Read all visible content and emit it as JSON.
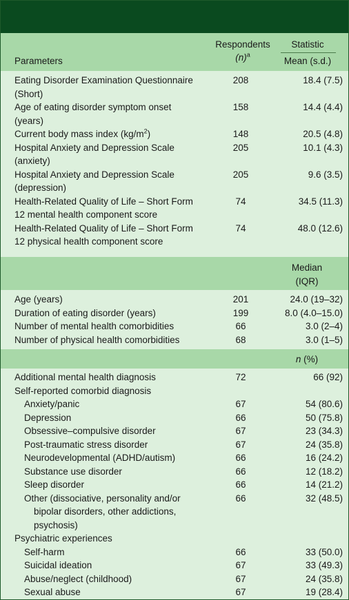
{
  "header": {
    "parameters": "Parameters",
    "respondents": "Respondents",
    "respondents_n": "(n)",
    "respondents_sup": "a",
    "statistic": "Statistic",
    "mean_sd": "Mean (s.d.)"
  },
  "section1": [
    {
      "l1": "Eating Disorder Examination Questionnaire",
      "l2": "(Short)",
      "n": "208",
      "v": "18.4 (7.5)"
    },
    {
      "l1": "Age of eating disorder symptom onset",
      "l2": "(years)",
      "n": "158",
      "v": "14.4 (4.4)"
    },
    {
      "l1": "Current body mass index (kg/m",
      "l1sup": "2",
      "l1end": ")",
      "n": "148",
      "v": "20.5 (4.8)"
    },
    {
      "l1": "Hospital Anxiety and Depression Scale",
      "l2": "(anxiety)",
      "n": "205",
      "v": "10.1 (4.3)"
    },
    {
      "l1": "Hospital Anxiety and Depression Scale",
      "l2": "(depression)",
      "n": "205",
      "v": "9.6 (3.5)"
    },
    {
      "l1": "Health-Related Quality of Life – Short Form",
      "l2": "12 mental health component score",
      "n": "74",
      "v": "34.5 (11.3)"
    },
    {
      "l1": "Health-Related Quality of Life – Short Form",
      "l2": "12 physical health component score",
      "n": "74",
      "v": "48.0 (12.6)"
    }
  ],
  "median_header": {
    "l1": "Median",
    "l2": "(IQR)"
  },
  "section2": [
    {
      "l1": "Age (years)",
      "n": "201",
      "v": "24.0 (19–32)"
    },
    {
      "l1": "Duration of eating disorder (years)",
      "n": "199",
      "v": "8.0 (4.0–15.0)"
    },
    {
      "l1": "Number of mental health comorbidities",
      "n": "66",
      "v": "3.0 (2–4)"
    },
    {
      "l1": "Number of physical health comorbidities",
      "n": "68",
      "v": "3.0 (1–5)"
    }
  ],
  "npct_header": {
    "n": "n",
    "pct": " (%)"
  },
  "section3": [
    {
      "l1": "Additional mental health diagnosis",
      "n": "72",
      "v": "66 (92)"
    },
    {
      "l1": "Self-reported comorbid diagnosis",
      "n": "",
      "v": ""
    },
    {
      "l1": "Anxiety/panic",
      "n": "67",
      "v": "54 (80.6)",
      "indent": true
    },
    {
      "l1": "Depression",
      "n": "66",
      "v": "50 (75.8)",
      "indent": true
    },
    {
      "l1": "Obsessive–compulsive disorder",
      "n": "67",
      "v": "23 (34.3)",
      "indent": true
    },
    {
      "l1": "Post-traumatic stress disorder",
      "n": "67",
      "v": "24 (35.8)",
      "indent": true
    },
    {
      "l1": "Neurodevelopmental (ADHD/autism)",
      "n": "66",
      "v": "16 (24.2)",
      "indent": true
    },
    {
      "l1": "Substance use disorder",
      "n": "66",
      "v": "12 (18.2)",
      "indent": true
    },
    {
      "l1": "Sleep disorder",
      "n": "66",
      "v": "14 (21.2)",
      "indent": true
    },
    {
      "l1": "Other (dissociative, personality and/or",
      "l2": "bipolar disorders, other addictions,",
      "l3": "psychosis)",
      "n": "66",
      "v": "32 (48.5)",
      "indent": true
    },
    {
      "l1": "Psychiatric experiences",
      "n": "",
      "v": ""
    },
    {
      "l1": "Self-harm",
      "n": "66",
      "v": "33 (50.0)",
      "indent": true
    },
    {
      "l1": "Suicidal ideation",
      "n": "67",
      "v": "33 (49.3)",
      "indent": true
    },
    {
      "l1": "Abuse/neglect (childhood)",
      "n": "67",
      "v": "24 (35.8)",
      "indent": true
    },
    {
      "l1": "Sexual abuse",
      "n": "67",
      "v": "19 (28.4)",
      "indent": true
    }
  ]
}
